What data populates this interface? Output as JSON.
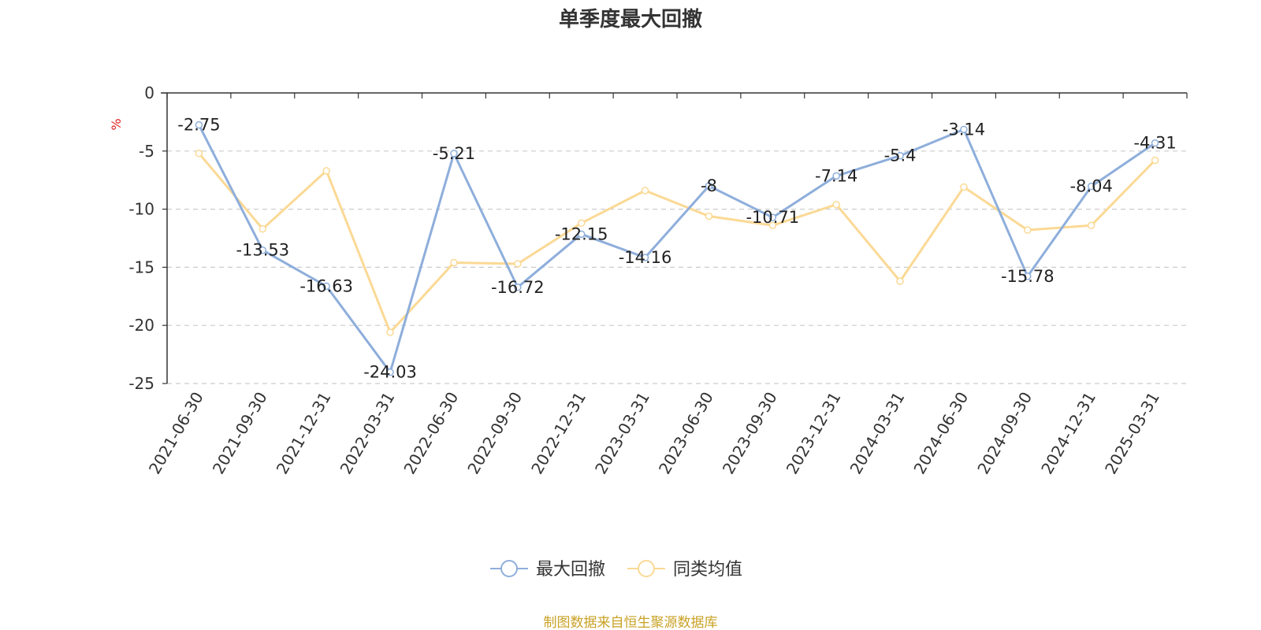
{
  "chart_data": {
    "type": "line",
    "title": "单季度最大回撤",
    "ylabel": "%",
    "ylim": [
      -25,
      0
    ],
    "yticks": [
      0,
      -5,
      -10,
      -15,
      -20,
      -25
    ],
    "grid": true,
    "legend_position": "bottom-center",
    "categories": [
      "2021-06-30",
      "2021-09-30",
      "2021-12-31",
      "2022-03-31",
      "2022-06-30",
      "2022-09-30",
      "2022-12-31",
      "2023-03-31",
      "2023-06-30",
      "2023-09-30",
      "2023-12-31",
      "2024-03-31",
      "2024-06-30",
      "2024-09-30",
      "2024-12-31",
      "2025-03-31"
    ],
    "series": [
      {
        "name": "最大回撤",
        "color": "#8eaedb",
        "values": [
          -2.75,
          -13.53,
          -16.63,
          -24.03,
          -5.21,
          -16.72,
          -12.15,
          -14.16,
          -8,
          -10.71,
          -7.14,
          -5.4,
          -3.14,
          -15.78,
          -8.04,
          -4.31
        ],
        "labels": [
          "-2.75",
          "-13.53",
          "-16.63",
          "-24.03",
          "-5.21",
          "-16.72",
          "-12.15",
          "-14.16",
          "-8",
          "-10.71",
          "-7.14",
          "-5.4",
          "-3.14",
          "-15.78",
          "-8.04",
          "-4.31"
        ],
        "show_labels": true
      },
      {
        "name": "同类均值",
        "color": "#fbd995",
        "values": [
          -5.2,
          -11.7,
          -6.7,
          -20.6,
          -14.6,
          -14.7,
          -11.2,
          -8.4,
          -10.6,
          -11.4,
          -9.6,
          -16.2,
          -8.1,
          -11.8,
          -11.4,
          -5.8
        ],
        "show_labels": false
      }
    ],
    "source": "制图数据来自恒生聚源数据库"
  }
}
